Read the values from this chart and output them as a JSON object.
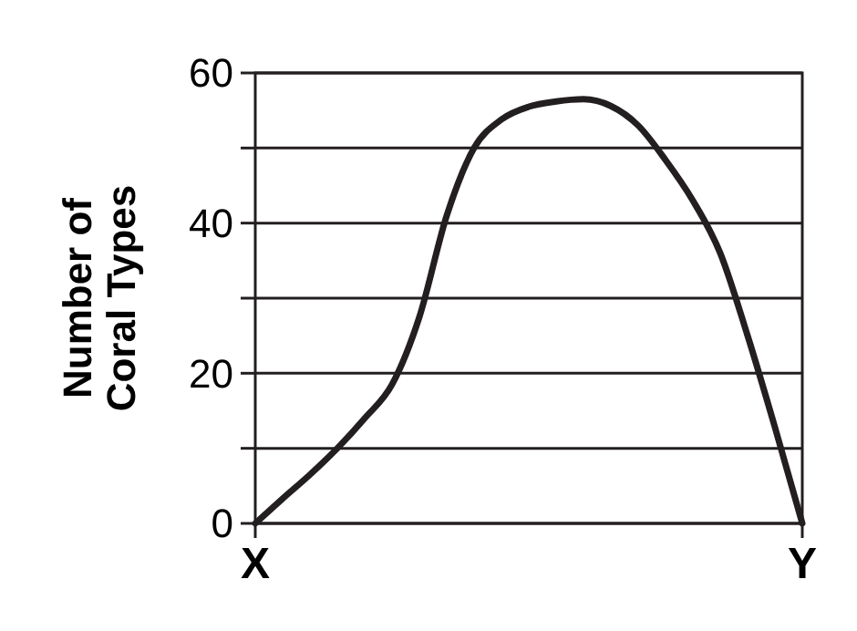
{
  "chart_data": {
    "type": "line",
    "ylabel": "Number of Coral Types",
    "categories": [
      "X",
      null,
      null,
      null,
      null,
      null,
      null,
      null,
      null,
      null,
      null,
      null,
      null,
      null,
      null,
      null,
      null,
      null,
      null,
      null,
      "Y"
    ],
    "series": [
      {
        "color": "#231f20",
        "values": [
          0,
          3.3,
          6.5,
          10,
          14,
          18.5,
          27.5,
          41,
          50,
          53.8,
          55.5,
          56.2,
          56.5,
          55.6,
          53,
          48.4,
          43,
          36,
          25,
          12.8,
          0
        ]
      }
    ],
    "ylim": [
      0,
      60
    ],
    "yticks": [
      0,
      {
        "value": 10,
        "label": null
      },
      20,
      {
        "value": 30,
        "label": null
      },
      40,
      {
        "value": 50,
        "label": null
      },
      60
    ],
    "grid": "y",
    "marker": "none",
    "line_style": "solid"
  }
}
